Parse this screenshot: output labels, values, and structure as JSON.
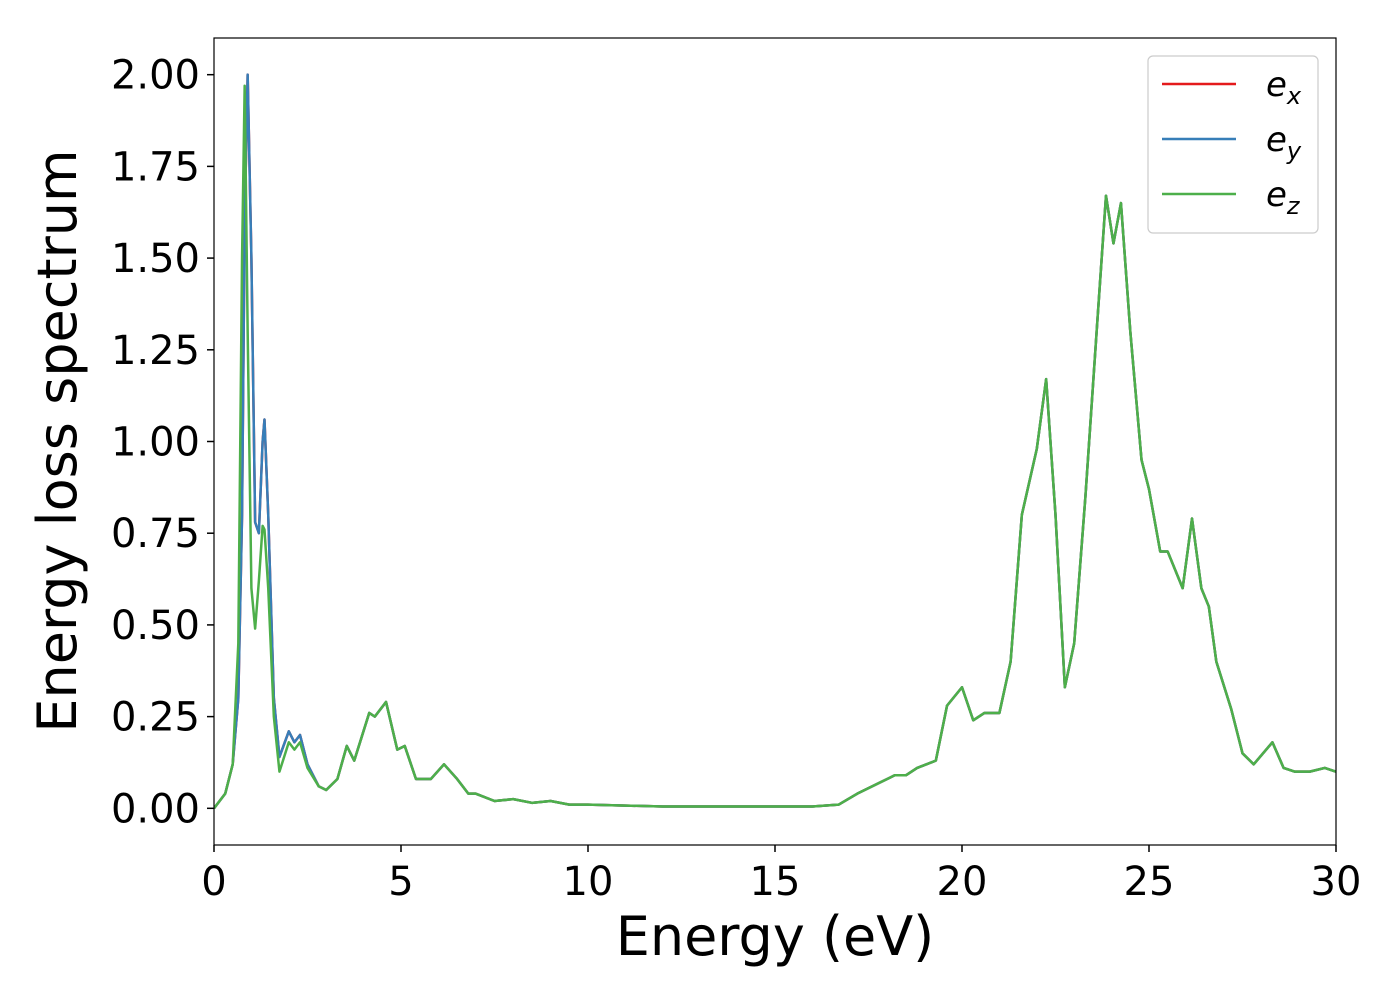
{
  "chart_data": {
    "type": "line",
    "xlabel": "Energy (eV)",
    "ylabel": "Energy loss spectrum",
    "x": [
      0,
      0.3,
      0.5,
      0.65,
      0.75,
      0.82,
      0.9,
      1.0,
      1.1,
      1.2,
      1.3,
      1.35,
      1.45,
      1.6,
      1.75,
      2.0,
      2.15,
      2.3,
      2.5,
      2.8,
      3.0,
      3.3,
      3.55,
      3.75,
      4.15,
      4.3,
      4.6,
      4.9,
      5.1,
      5.4,
      5.8,
      6.15,
      6.5,
      6.8,
      7.0,
      7.5,
      8.0,
      8.5,
      9.0,
      9.5,
      10,
      12,
      14,
      16,
      16.7,
      17.2,
      17.8,
      18.2,
      18.5,
      18.8,
      19.3,
      19.6,
      20.0,
      20.3,
      20.6,
      21.0,
      21.3,
      21.6,
      22.0,
      22.25,
      22.5,
      22.75,
      23.0,
      23.3,
      23.6,
      23.85,
      24.05,
      24.25,
      24.5,
      24.8,
      25.0,
      25.3,
      25.5,
      25.9,
      26.15,
      26.4,
      26.6,
      26.8,
      27.2,
      27.5,
      27.8,
      28.3,
      28.6,
      28.9,
      29.3,
      29.7,
      30
    ],
    "series": [
      {
        "name": "ex",
        "color": "#e41a1c",
        "values": [
          0,
          0.04,
          0.12,
          0.3,
          0.8,
          1.6,
          2.0,
          1.5,
          0.78,
          0.75,
          1.0,
          1.06,
          0.8,
          0.3,
          0.14,
          0.21,
          0.18,
          0.2,
          0.12,
          0.06,
          0.05,
          0.08,
          0.17,
          0.13,
          0.26,
          0.25,
          0.29,
          0.16,
          0.17,
          0.08,
          0.08,
          0.12,
          0.08,
          0.04,
          0.04,
          0.02,
          0.025,
          0.015,
          0.02,
          0.01,
          0.01,
          0.005,
          0.005,
          0.005,
          0.01,
          0.04,
          0.07,
          0.09,
          0.09,
          0.11,
          0.13,
          0.28,
          0.33,
          0.24,
          0.26,
          0.26,
          0.4,
          0.8,
          0.98,
          1.17,
          0.8,
          0.33,
          0.45,
          0.85,
          1.3,
          1.67,
          1.54,
          1.65,
          1.3,
          0.95,
          0.87,
          0.7,
          0.7,
          0.6,
          0.79,
          0.6,
          0.55,
          0.4,
          0.27,
          0.15,
          0.12,
          0.18,
          0.11,
          0.1,
          0.1,
          0.11,
          0.1
        ]
      },
      {
        "name": "ey",
        "color": "#377eb8",
        "values": [
          0,
          0.04,
          0.12,
          0.3,
          0.8,
          1.6,
          2.0,
          1.5,
          0.78,
          0.75,
          1.0,
          1.06,
          0.8,
          0.3,
          0.14,
          0.21,
          0.18,
          0.2,
          0.12,
          0.06,
          0.05,
          0.08,
          0.17,
          0.13,
          0.26,
          0.25,
          0.29,
          0.16,
          0.17,
          0.08,
          0.08,
          0.12,
          0.08,
          0.04,
          0.04,
          0.02,
          0.025,
          0.015,
          0.02,
          0.01,
          0.01,
          0.005,
          0.005,
          0.005,
          0.01,
          0.04,
          0.07,
          0.09,
          0.09,
          0.11,
          0.13,
          0.28,
          0.33,
          0.24,
          0.26,
          0.26,
          0.4,
          0.8,
          0.98,
          1.17,
          0.8,
          0.33,
          0.45,
          0.85,
          1.3,
          1.67,
          1.54,
          1.65,
          1.3,
          0.95,
          0.87,
          0.7,
          0.7,
          0.6,
          0.79,
          0.6,
          0.55,
          0.4,
          0.27,
          0.15,
          0.12,
          0.18,
          0.11,
          0.1,
          0.1,
          0.11,
          0.1
        ]
      },
      {
        "name": "ez",
        "color": "#4daf4a",
        "values": [
          0,
          0.04,
          0.12,
          0.45,
          1.5,
          1.97,
          1.3,
          0.6,
          0.49,
          0.62,
          0.77,
          0.76,
          0.6,
          0.25,
          0.1,
          0.18,
          0.16,
          0.18,
          0.11,
          0.06,
          0.05,
          0.08,
          0.17,
          0.13,
          0.26,
          0.25,
          0.29,
          0.16,
          0.17,
          0.08,
          0.08,
          0.12,
          0.08,
          0.04,
          0.04,
          0.02,
          0.025,
          0.015,
          0.02,
          0.01,
          0.01,
          0.005,
          0.005,
          0.005,
          0.01,
          0.04,
          0.07,
          0.09,
          0.09,
          0.11,
          0.13,
          0.28,
          0.33,
          0.24,
          0.26,
          0.26,
          0.4,
          0.8,
          0.98,
          1.17,
          0.8,
          0.33,
          0.45,
          0.85,
          1.3,
          1.67,
          1.54,
          1.65,
          1.3,
          0.95,
          0.87,
          0.7,
          0.7,
          0.6,
          0.79,
          0.6,
          0.55,
          0.4,
          0.27,
          0.15,
          0.12,
          0.18,
          0.11,
          0.1,
          0.1,
          0.11,
          0.1
        ]
      }
    ],
    "xlim": [
      0,
      30
    ],
    "xticks": [
      0,
      5,
      10,
      15,
      20,
      25,
      30
    ],
    "ylim": [
      -0.1,
      2.1
    ],
    "yticks": [
      {
        "value": 0,
        "label": "0.00"
      },
      {
        "value": 0.25,
        "label": "0.25"
      },
      {
        "value": 0.5,
        "label": "0.50"
      },
      {
        "value": 0.75,
        "label": "0.75"
      },
      {
        "value": 1,
        "label": "1.00"
      },
      {
        "value": 1.25,
        "label": "1.25"
      },
      {
        "value": 1.5,
        "label": "1.50"
      },
      {
        "value": 1.75,
        "label": "1.75"
      },
      {
        "value": 2,
        "label": "2.00"
      }
    ],
    "legend": "upper right",
    "grid": false
  }
}
